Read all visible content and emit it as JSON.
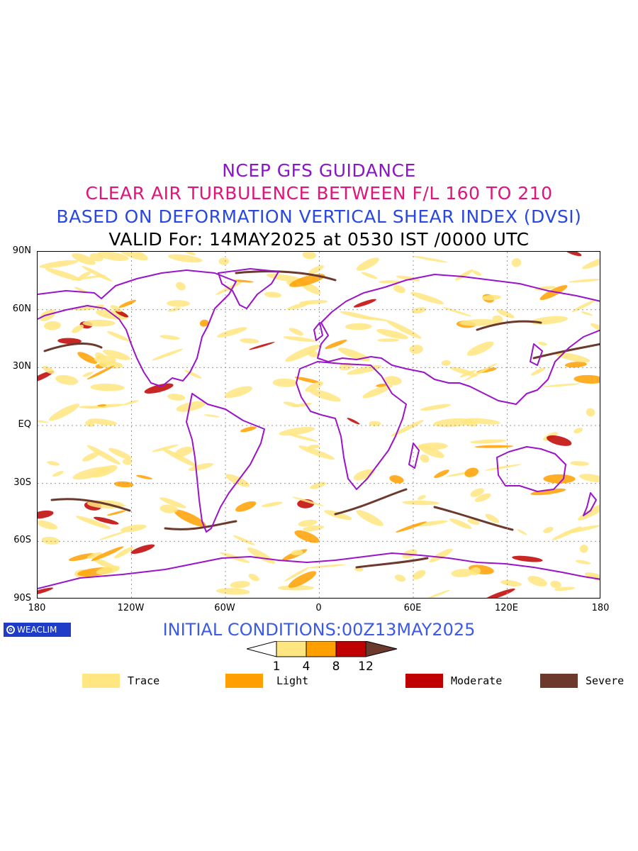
{
  "titles": {
    "line1": "NCEP GFS GUIDANCE",
    "line2": "CLEAR AIR TURBULENCE BETWEEN F/L 160 TO 210",
    "line3": "BASED ON DEFORMATION VERTICAL SHEAR INDEX (DVSI)",
    "line4": "VALID For: 14MAY2025 at 0530 IST /0000 UTC"
  },
  "colors": {
    "title1": "#8a16c8",
    "title2": "#e0147c",
    "title3": "#2848e0",
    "title4": "#000000",
    "coast": "#9a14c8",
    "trace": "#ffe680",
    "light": "#ffa000",
    "moderate": "#c00000",
    "severe": "#6b3a2c",
    "init": "#3c5ae6"
  },
  "lat_labels": [
    "90N",
    "60N",
    "30N",
    "EQ",
    "30S",
    "60S",
    "90S"
  ],
  "lon_labels": [
    "180",
    "120W",
    "60W",
    "0",
    "60E",
    "120E",
    "180"
  ],
  "logo_text": "WEACLIM",
  "init_conditions": "INITIAL CONDITIONS:00Z13MAY2025",
  "colorbar_ticks": [
    "1",
    "4",
    "8",
    "12"
  ],
  "legend": [
    {
      "label": "Trace",
      "color": "#ffe680"
    },
    {
      "label": "Light",
      "color": "#ffa000"
    },
    {
      "label": "Moderate",
      "color": "#c00000"
    },
    {
      "label": "Severe",
      "color": "#6b3a2c"
    }
  ]
}
